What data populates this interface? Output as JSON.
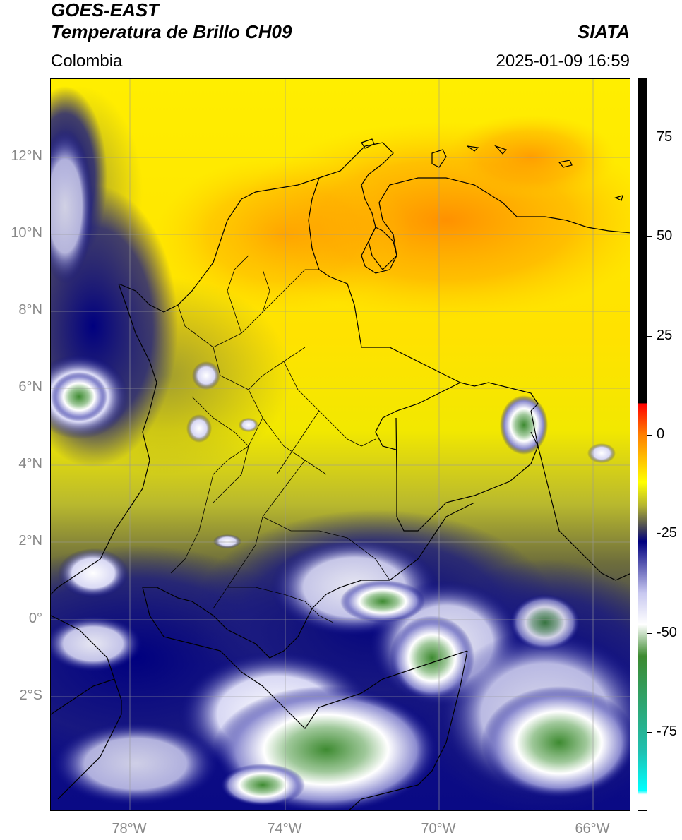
{
  "header": {
    "satellite": "GOES-EAST",
    "product": "Temperatura de Brillo CH09",
    "region": "Colombia",
    "agency": "SIATA",
    "datetime": "2025-01-09 16:59"
  },
  "axes": {
    "lat_labels": [
      "12°N",
      "10°N",
      "8°N",
      "6°N",
      "4°N",
      "2°N",
      "0°",
      "2°S"
    ],
    "lon_labels": [
      "78°W",
      "74°W",
      "70°W",
      "66°W"
    ]
  },
  "colorbar": {
    "labels": [
      "75",
      "50",
      "25",
      "0",
      "-25",
      "-50",
      "-75"
    ],
    "stops": [
      {
        "value": 90,
        "color": "#000000"
      },
      {
        "value": 8,
        "color": "#000000"
      },
      {
        "value": 7.9,
        "color": "#ff0000"
      },
      {
        "value": 0,
        "color": "#ff8000"
      },
      {
        "value": -12,
        "color": "#ffff00"
      },
      {
        "value": -18,
        "color": "#b3b330"
      },
      {
        "value": -24,
        "color": "#3c3c5a"
      },
      {
        "value": -27,
        "color": "#00007f"
      },
      {
        "value": -40,
        "color": "#c8c8f0"
      },
      {
        "value": -48,
        "color": "#ffffff"
      },
      {
        "value": -56,
        "color": "#3d8a30"
      },
      {
        "value": -80,
        "color": "#20c0b0"
      },
      {
        "value": -90,
        "color": "#00ffff"
      },
      {
        "value": -91,
        "color": "#ffffff"
      },
      {
        "value": -95,
        "color": "#ffffff"
      }
    ]
  }
}
